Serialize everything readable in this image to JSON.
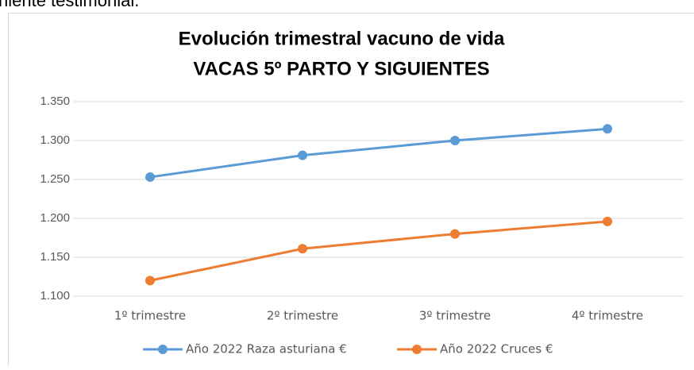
{
  "page_text": "niente testimonial.",
  "chart_data": {
    "type": "line",
    "title": [
      "Evolución trimestral vacuno de vida",
      "VACAS 5º PARTO Y SIGUIENTES"
    ],
    "categories": [
      "1º trimestre",
      "2º trimestre",
      "3º trimestre",
      "4º trimestre"
    ],
    "series": [
      {
        "name": "Año 2022 Raza asturiana €",
        "color": "#5b9bd5",
        "values": [
          1253,
          1281,
          1300,
          1315
        ]
      },
      {
        "name": "Año 2022 Cruces €",
        "color": "#ed7d31",
        "values": [
          1120,
          1161,
          1180,
          1196
        ]
      }
    ],
    "ylim": [
      1100,
      1350
    ],
    "yticks": [
      {
        "value": 1100,
        "label": "1.100"
      },
      {
        "value": 1150,
        "label": "1.150"
      },
      {
        "value": 1200,
        "label": "1.200"
      },
      {
        "value": 1250,
        "label": "1.250"
      },
      {
        "value": 1300,
        "label": "1.300"
      },
      {
        "value": 1350,
        "label": "1.350"
      }
    ],
    "grid": true,
    "legend": "bottom"
  }
}
